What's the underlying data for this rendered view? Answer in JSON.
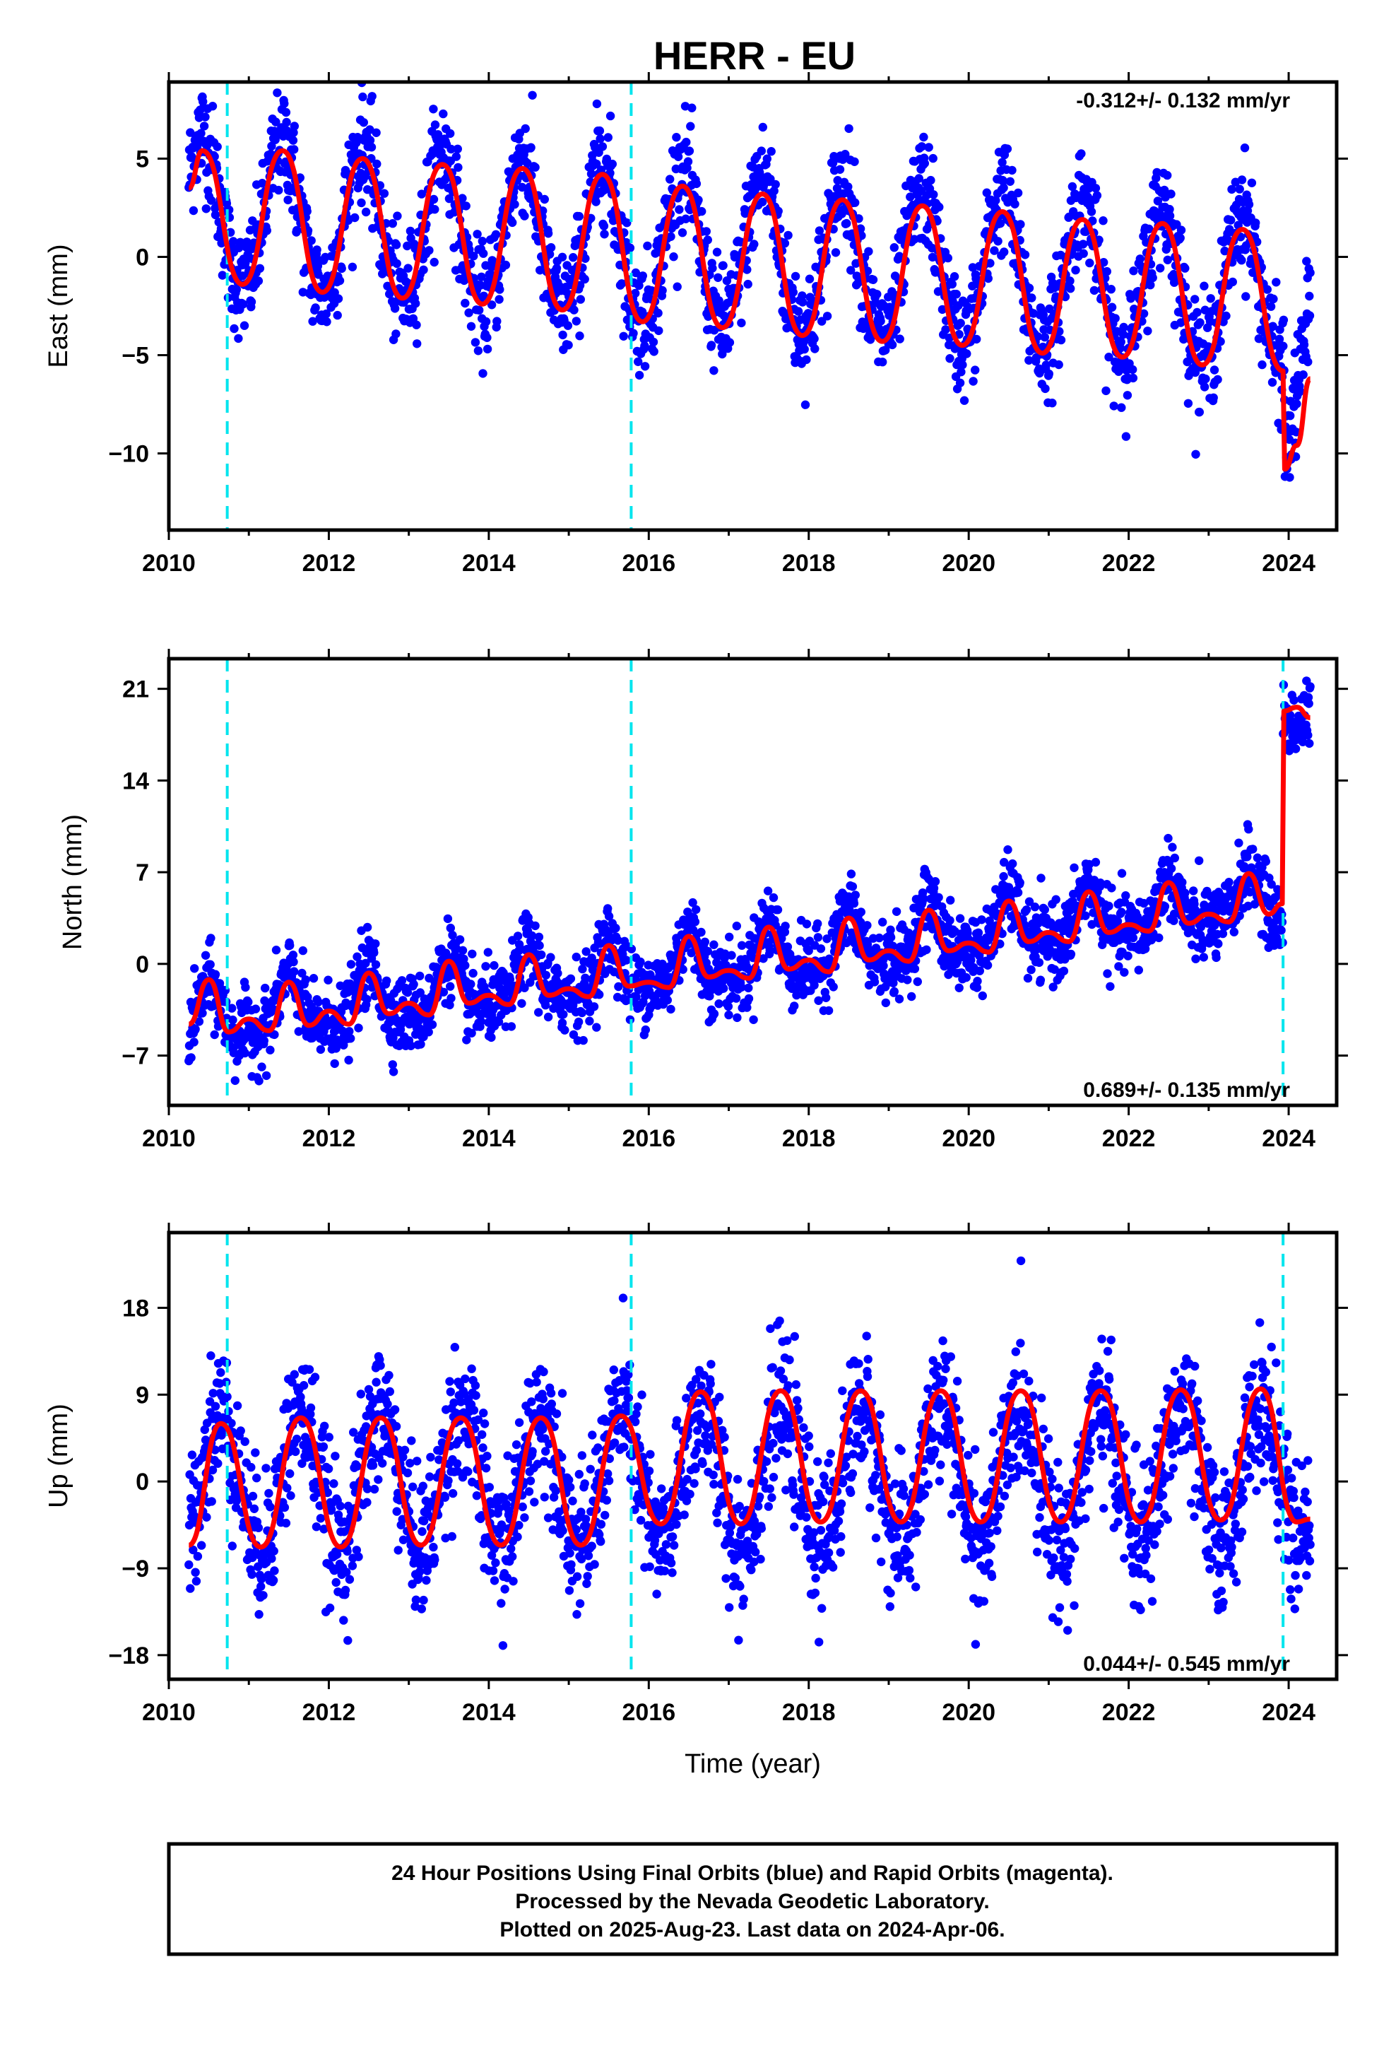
{
  "title": "HERR - EU",
  "colors": {
    "points": "#0000ff",
    "fit": "#ff0000",
    "steps": "#00e5ee",
    "frame": "#000000"
  },
  "chart_data": [
    {
      "type": "scatter",
      "ylabel": "East (mm)",
      "xlabel": "",
      "xlim": [
        2010.0,
        2024.6
      ],
      "ylim": [
        -13.9,
        8.9
      ],
      "xticks": [
        "2010",
        "2012",
        "2014",
        "2016",
        "2018",
        "2020",
        "2022",
        "2024"
      ],
      "xtick_values": [
        2010,
        2012,
        2014,
        2016,
        2018,
        2020,
        2022,
        2024
      ],
      "yticks": [
        "5",
        "0",
        "−5",
        "−10"
      ],
      "ytick_values": [
        5,
        0,
        -5,
        -10
      ],
      "rate": "-0.312+/- 0.132 mm/yr",
      "rate_position": "top-right",
      "steps": [
        2010.73,
        2015.78
      ],
      "series": [
        {
          "kind": "points",
          "model": {
            "start": 2010.25,
            "end": 2024.27,
            "offset": 2.3,
            "trend": -0.312,
            "annual_amp": 3.8,
            "annual_phase": 2010.42,
            "semi_amp": 0.3,
            "noise": 1.4,
            "breaks": [
              {
                "at": 2023.95,
                "jump": -5.0,
                "decay": 1.5
              }
            ]
          }
        },
        {
          "kind": "fit-line",
          "x": [
            2010.25,
            2010.42,
            2010.92,
            2011.42,
            2011.92,
            2012.42,
            2012.92,
            2013.42,
            2013.92,
            2014.42,
            2014.92,
            2015.42,
            2015.92,
            2016.42,
            2016.92,
            2017.42,
            2017.92,
            2018.42,
            2018.92,
            2019.42,
            2019.92,
            2020.42,
            2020.92,
            2021.42,
            2021.92,
            2022.42,
            2022.92,
            2023.42,
            2023.93,
            2023.95,
            2024.1,
            2024.27
          ],
          "y": [
            3.5,
            5.4,
            -1.4,
            5.4,
            -1.8,
            5.0,
            -2.1,
            4.7,
            -2.4,
            4.5,
            -2.7,
            4.2,
            -3.3,
            3.6,
            -3.6,
            3.2,
            -4.0,
            2.9,
            -4.3,
            2.6,
            -4.5,
            2.3,
            -4.9,
            1.9,
            -5.1,
            1.7,
            -5.5,
            1.4,
            -5.8,
            -10.8,
            -9.6,
            -6.2
          ]
        }
      ]
    },
    {
      "type": "scatter",
      "ylabel": "North (mm)",
      "xlabel": "",
      "xlim": [
        2010.0,
        2024.6
      ],
      "ylim": [
        -10.8,
        23.3
      ],
      "xticks": [
        "2010",
        "2012",
        "2014",
        "2016",
        "2018",
        "2020",
        "2022",
        "2024"
      ],
      "xtick_values": [
        2010,
        2012,
        2014,
        2016,
        2018,
        2020,
        2022,
        2024
      ],
      "yticks": [
        "21",
        "14",
        "7",
        "0",
        "−7"
      ],
      "ytick_values": [
        21,
        14,
        7,
        0,
        -7
      ],
      "rate": "0.689+/- 0.135 mm/yr",
      "rate_position": "bottom-right",
      "steps": [
        2010.73,
        2015.78,
        2023.93
      ],
      "series": [
        {
          "kind": "points",
          "model": {
            "start": 2010.25,
            "end": 2024.27,
            "offset": -4.5,
            "trend": 0.689,
            "annual_amp": 1.9,
            "annual_phase": 2010.5,
            "semi_amp": 0.8,
            "noise": 1.4,
            "breaks": [
              {
                "at": 2023.93,
                "jump": 14.5,
                "decay": 0
              }
            ]
          }
        },
        {
          "kind": "fit-line",
          "x": [
            2010.25,
            2010.5,
            2010.75,
            2011.0,
            2011.25,
            2011.5,
            2011.75,
            2012.0,
            2012.25,
            2012.5,
            2012.75,
            2013.0,
            2013.25,
            2013.5,
            2013.75,
            2014.0,
            2014.25,
            2014.5,
            2014.75,
            2015.0,
            2015.25,
            2015.5,
            2015.75,
            2016.0,
            2016.25,
            2016.5,
            2016.75,
            2017.0,
            2017.25,
            2017.5,
            2017.75,
            2018.0,
            2018.25,
            2018.5,
            2018.75,
            2019.0,
            2019.25,
            2019.5,
            2019.75,
            2020.0,
            2020.25,
            2020.5,
            2020.75,
            2021.0,
            2021.25,
            2021.5,
            2021.75,
            2022.0,
            2022.25,
            2022.5,
            2022.75,
            2023.0,
            2023.25,
            2023.5,
            2023.75,
            2023.92,
            2023.94,
            2024.1,
            2024.27
          ],
          "y": [
            -4.6,
            -1.2,
            -5.2,
            -4.2,
            -5.1,
            -1.4,
            -4.7,
            -3.6,
            -4.6,
            -0.7,
            -3.8,
            -3.0,
            -3.9,
            0.2,
            -3.0,
            -2.4,
            -3.1,
            0.7,
            -2.4,
            -1.9,
            -2.5,
            1.4,
            -1.7,
            -1.4,
            -1.8,
            2.1,
            -1.0,
            -0.5,
            -1.1,
            2.8,
            -0.4,
            0.3,
            -0.6,
            3.5,
            0.3,
            1.0,
            0.2,
            4.1,
            1.0,
            1.6,
            0.9,
            4.8,
            1.7,
            2.4,
            1.7,
            5.5,
            2.4,
            3.0,
            2.5,
            6.2,
            3.1,
            3.8,
            3.2,
            6.9,
            3.8,
            4.6,
            19.3,
            19.6,
            18.8
          ]
        }
      ]
    },
    {
      "type": "scatter",
      "ylabel": "Up (mm)",
      "xlabel": "Time (year)",
      "xlim": [
        2010.0,
        2024.6
      ],
      "ylim": [
        -20.5,
        25.8
      ],
      "xticks": [
        "2010",
        "2012",
        "2014",
        "2016",
        "2018",
        "2020",
        "2022",
        "2024"
      ],
      "xtick_values": [
        2010,
        2012,
        2014,
        2016,
        2018,
        2020,
        2022,
        2024
      ],
      "yticks": [
        "18",
        "9",
        "0",
        "−9",
        "−18"
      ],
      "ytick_values": [
        18,
        9,
        0,
        -9,
        -18
      ],
      "rate": "0.044+/- 0.545 mm/yr",
      "rate_position": "bottom-right",
      "steps": [
        2010.73,
        2015.78,
        2023.93
      ],
      "series": [
        {
          "kind": "points",
          "model": {
            "start": 2010.25,
            "end": 2024.27,
            "offset": 0.0,
            "trend": 0.044,
            "annual_amp": 7.0,
            "annual_phase": 2010.65,
            "semi_amp": 0,
            "noise": 3.6,
            "breaks": []
          }
        },
        {
          "kind": "fit-line",
          "x": [
            2010.25,
            2010.65,
            2011.15,
            2011.65,
            2012.15,
            2012.65,
            2013.15,
            2013.65,
            2014.15,
            2014.65,
            2015.15,
            2015.65,
            2016.15,
            2016.65,
            2017.15,
            2017.65,
            2018.15,
            2018.65,
            2019.15,
            2019.65,
            2020.15,
            2020.65,
            2021.15,
            2021.65,
            2022.15,
            2022.65,
            2023.15,
            2023.65,
            2024.1,
            2024.27
          ],
          "y": [
            -6.6,
            6.0,
            -6.8,
            6.6,
            -6.8,
            6.6,
            -6.6,
            6.6,
            -6.6,
            6.6,
            -6.6,
            6.8,
            -4.4,
            9.3,
            -4.4,
            9.4,
            -4.2,
            9.4,
            -4.2,
            9.4,
            -4.2,
            9.4,
            -4.2,
            9.4,
            -4.2,
            9.5,
            -4.0,
            9.6,
            -4.2,
            -3.9
          ]
        }
      ]
    }
  ],
  "footer": {
    "line1": "24 Hour Positions Using Final Orbits (blue) and Rapid Orbits (magenta).",
    "line2": "Processed by the Nevada Geodetic Laboratory.",
    "line3": "Plotted on 2025-Aug-23. Last data on 2024-Apr-06."
  }
}
